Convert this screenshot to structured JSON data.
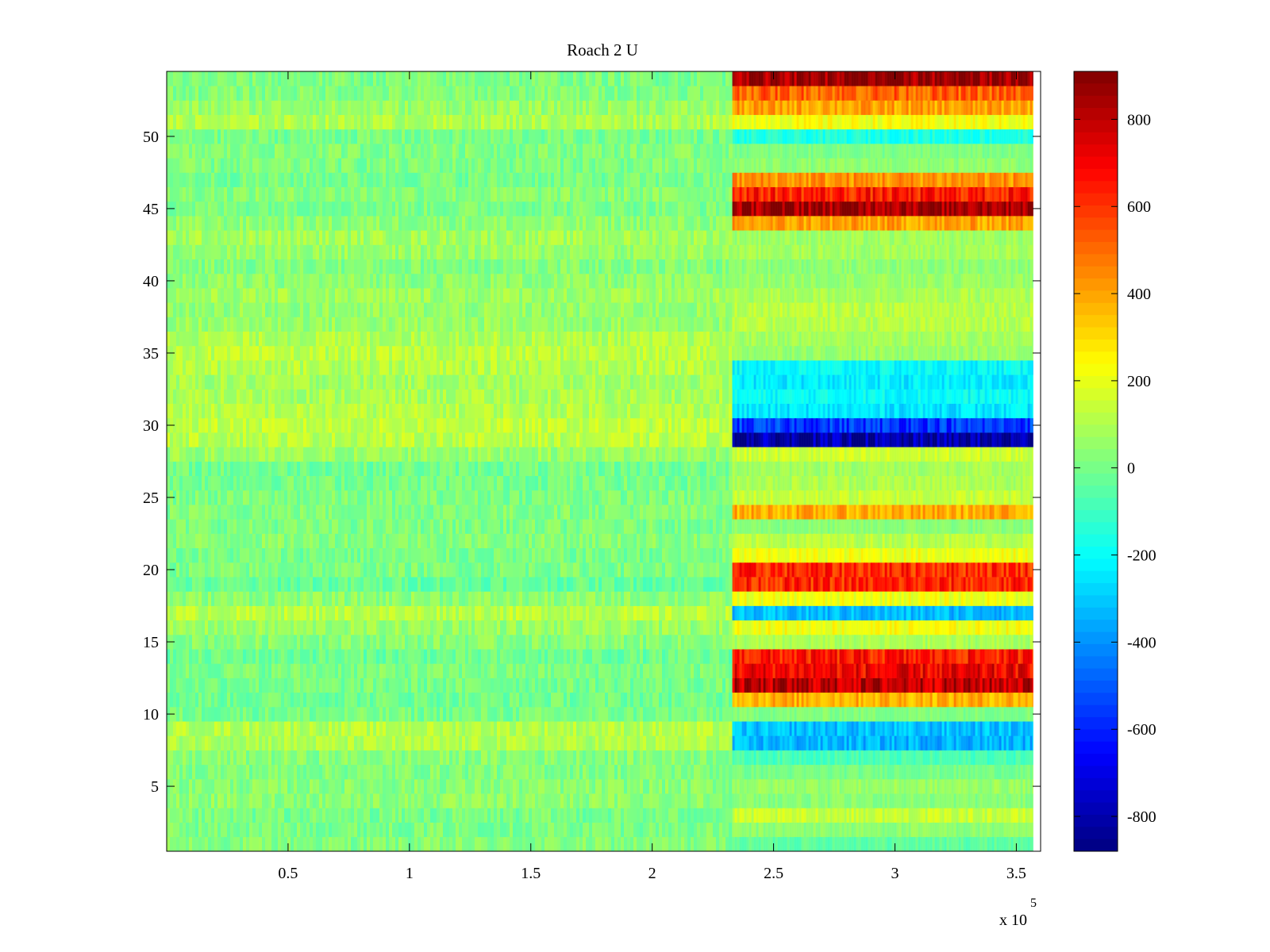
{
  "chart_data": {
    "type": "heatmap",
    "title": "Roach 2 U",
    "xlabel": "",
    "ylabel": "",
    "x_exponent_label": "x 10",
    "x_exponent_power": "5",
    "xlim": [
      0,
      3.6
    ],
    "ylim": [
      0.5,
      54.5
    ],
    "x_break": 2.33,
    "xticks": [
      {
        "value": 0.5,
        "label": "0.5"
      },
      {
        "value": 1,
        "label": "1"
      },
      {
        "value": 1.5,
        "label": "1.5"
      },
      {
        "value": 2,
        "label": "2"
      },
      {
        "value": 2.5,
        "label": "2.5"
      },
      {
        "value": 3,
        "label": "3"
      },
      {
        "value": 3.5,
        "label": "3.5"
      }
    ],
    "yticks": [
      {
        "value": 5,
        "label": "5"
      },
      {
        "value": 10,
        "label": "10"
      },
      {
        "value": 15,
        "label": "15"
      },
      {
        "value": 20,
        "label": "20"
      },
      {
        "value": 25,
        "label": "25"
      },
      {
        "value": 30,
        "label": "30"
      },
      {
        "value": 35,
        "label": "35"
      },
      {
        "value": 40,
        "label": "40"
      },
      {
        "value": 45,
        "label": "45"
      },
      {
        "value": 50,
        "label": "50"
      }
    ],
    "colorbar": {
      "range": [
        -880,
        910
      ],
      "colormap": "jet",
      "ticks": [
        {
          "value": 800,
          "label": "800"
        },
        {
          "value": 600,
          "label": "600"
        },
        {
          "value": 400,
          "label": "400"
        },
        {
          "value": 200,
          "label": "200"
        },
        {
          "value": 0,
          "label": "0"
        },
        {
          "value": -200,
          "label": "-200"
        },
        {
          "value": -400,
          "label": "-400"
        },
        {
          "value": -600,
          "label": "-600"
        },
        {
          "value": -800,
          "label": "-800"
        }
      ]
    },
    "left_segment_note": "values near 0 (-100 to 150) for all rows",
    "left_levels": [
      20,
      10,
      0,
      40,
      30,
      20,
      30,
      100,
      110,
      0,
      -10,
      0,
      10,
      -20,
      30,
      60,
      120,
      40,
      -30,
      10,
      0,
      30,
      10,
      20,
      10,
      0,
      -10,
      60,
      120,
      130,
      110,
      90,
      80,
      110,
      120,
      100,
      60,
      50,
      70,
      40,
      20,
      60,
      80,
      40,
      10,
      30,
      0,
      10,
      20,
      0,
      100,
      60,
      20,
      10
    ],
    "right_segment_levels": [
      -40,
      40,
      140,
      30,
      60,
      0,
      -80,
      -340,
      -320,
      20,
      380,
      800,
      700,
      640,
      90,
      220,
      -330,
      210,
      620,
      620,
      210,
      120,
      30,
      380,
      140,
      100,
      80,
      150,
      -820,
      -560,
      -250,
      -200,
      -240,
      -210,
      60,
      80,
      110,
      120,
      90,
      60,
      40,
      80,
      70,
      400,
      870,
      640,
      430,
      40,
      10,
      -160,
      220,
      400,
      520,
      880
    ]
  }
}
